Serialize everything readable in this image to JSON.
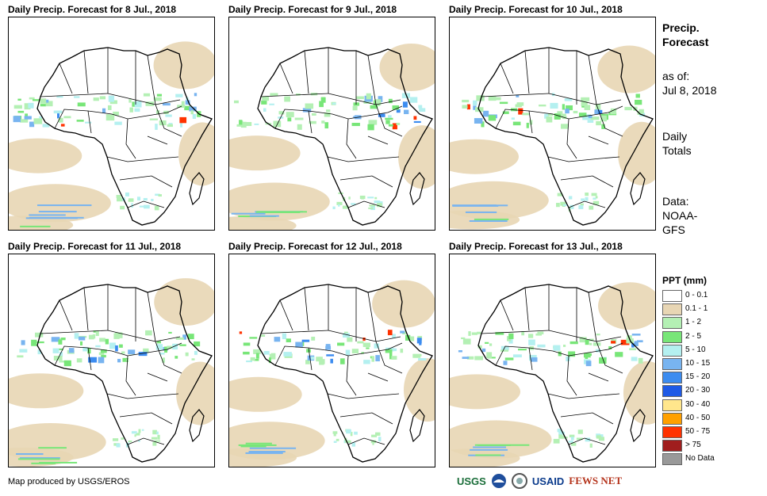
{
  "panels": [
    {
      "title": "Daily Precip. Forecast for 8 Jul., 2018"
    },
    {
      "title": "Daily Precip. Forecast for 9 Jul., 2018"
    },
    {
      "title": "Daily Precip. Forecast for 10 Jul., 2018"
    },
    {
      "title": "Daily Precip. Forecast for 11 Jul., 2018"
    },
    {
      "title": "Daily Precip. Forecast for 12 Jul., 2018"
    },
    {
      "title": "Daily Precip. Forecast for 13 Jul., 2018"
    }
  ],
  "sidebar": {
    "title_line1": "Precip.",
    "title_line2": "Forecast",
    "asof_line1": "as of:",
    "asof_line2": "Jul 8, 2018",
    "totals_line1": "Daily",
    "totals_line2": "Totals",
    "data_line1": "Data:",
    "data_line2": "NOAA-",
    "data_line3": "GFS"
  },
  "legend": {
    "title": "PPT (mm)",
    "items": [
      {
        "label": "0 - 0.1",
        "color": "#ffffff"
      },
      {
        "label": "0.1 - 1",
        "color": "#e8d6b4"
      },
      {
        "label": "1 - 2",
        "color": "#b4f0b4"
      },
      {
        "label": "2 - 5",
        "color": "#78e678"
      },
      {
        "label": "5 - 10",
        "color": "#b4f0f0"
      },
      {
        "label": "10 - 15",
        "color": "#78b4f0"
      },
      {
        "label": "15 - 20",
        "color": "#3c8cf0"
      },
      {
        "label": "20 - 30",
        "color": "#1e5ae6"
      },
      {
        "label": "30 - 40",
        "color": "#ffe68c"
      },
      {
        "label": "40 - 50",
        "color": "#ffa000"
      },
      {
        "label": "50 - 75",
        "color": "#ff3200"
      },
      {
        "label": "> 75",
        "color": "#a01e1e"
      },
      {
        "label": "No Data",
        "color": "#999999"
      }
    ]
  },
  "credit": "Map produced by USGS/EROS",
  "logos": {
    "usgs": "USGS",
    "usaid": "USAID",
    "fewsnet": "FEWS NET"
  }
}
